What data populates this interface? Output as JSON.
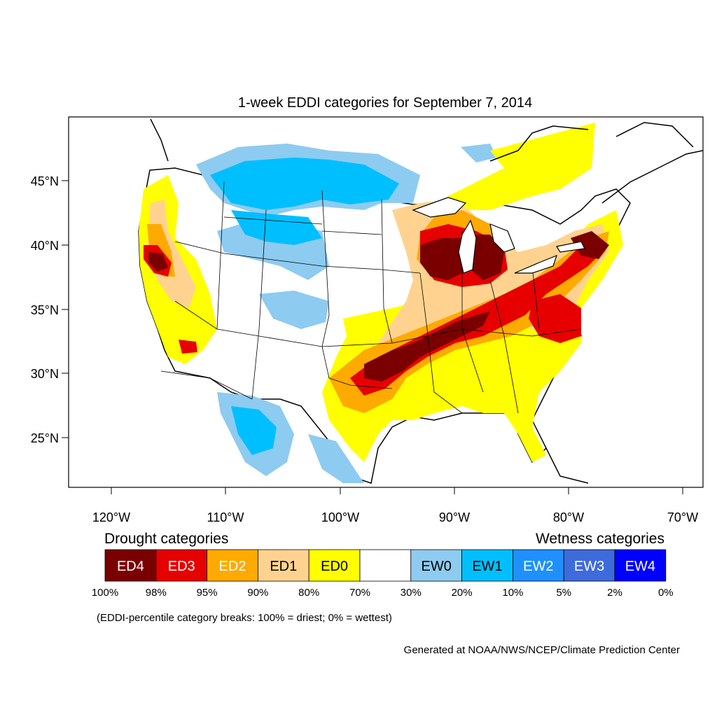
{
  "map": {
    "title": "1-week EDDI categories for September 7, 2014",
    "lat_labels": [
      "45°N",
      "40°N",
      "35°N",
      "30°N",
      "25°N"
    ],
    "lon_labels": [
      "120°W",
      "110°W",
      "100°W",
      "90°W",
      "80°W",
      "70°W"
    ]
  },
  "legend": {
    "drought_title": "Drought categories",
    "wetness_title": "Wetness categories",
    "categories": [
      {
        "label": "ED4",
        "color": "#7a0000",
        "text_color": "#ffffff"
      },
      {
        "label": "ED3",
        "color": "#e60000",
        "text_color": "#ffffff"
      },
      {
        "label": "ED2",
        "color": "#ffaa00",
        "text_color": "#ffffff"
      },
      {
        "label": "ED1",
        "color": "#ffd38f",
        "text_color": "#000000"
      },
      {
        "label": "ED0",
        "color": "#ffff00",
        "text_color": "#000000"
      },
      {
        "label": "",
        "color": "#ffffff",
        "text_color": "#000000"
      },
      {
        "label": "EW0",
        "color": "#8ecbf0",
        "text_color": "#000000"
      },
      {
        "label": "EW1",
        "color": "#00bfff",
        "text_color": "#000000"
      },
      {
        "label": "EW2",
        "color": "#1e90ff",
        "text_color": "#ffffff"
      },
      {
        "label": "EW3",
        "color": "#3e6bdc",
        "text_color": "#ffffff"
      },
      {
        "label": "EW4",
        "color": "#0000ff",
        "text_color": "#ffffff"
      }
    ],
    "breaks": [
      "100%",
      "98%",
      "95%",
      "90%",
      "80%",
      "70%",
      "30%",
      "20%",
      "10%",
      "5%",
      "2%",
      "0%"
    ],
    "note": "(EDDI-percentile category breaks: 100% = driest; 0% = wettest)"
  },
  "credit": "Generated at NOAA/NWS/NCEP/Climate Prediction Center"
}
